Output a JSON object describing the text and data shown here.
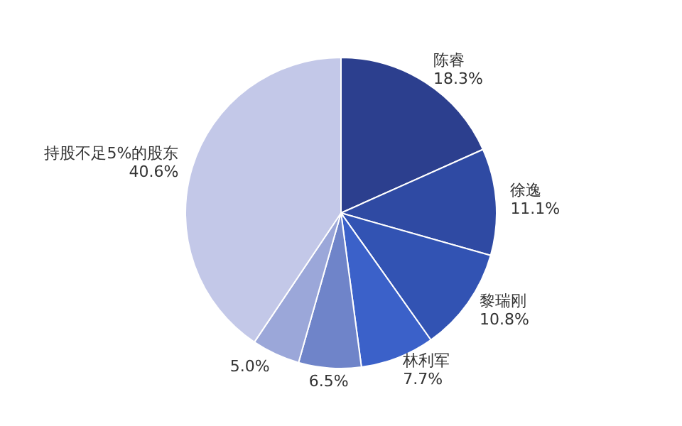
{
  "chart_data": {
    "type": "pie",
    "categories": [
      "陈睿",
      "徐逸",
      "黎瑞刚",
      "林利军",
      null,
      null,
      "持股不足5%的股东"
    ],
    "values": [
      18.3,
      11.1,
      10.8,
      7.7,
      6.5,
      5.0,
      40.6
    ],
    "value_labels": [
      "18.3%",
      "11.1%",
      "10.8%",
      "7.7%",
      "6.5%",
      "5.0%",
      "40.6%"
    ],
    "colors": [
      "#2c3f8e",
      "#2f4aa3",
      "#3253b3",
      "#3b61c9",
      "#6f84c9",
      "#9ba7d9",
      "#c3c8e8"
    ],
    "legend": false
  }
}
